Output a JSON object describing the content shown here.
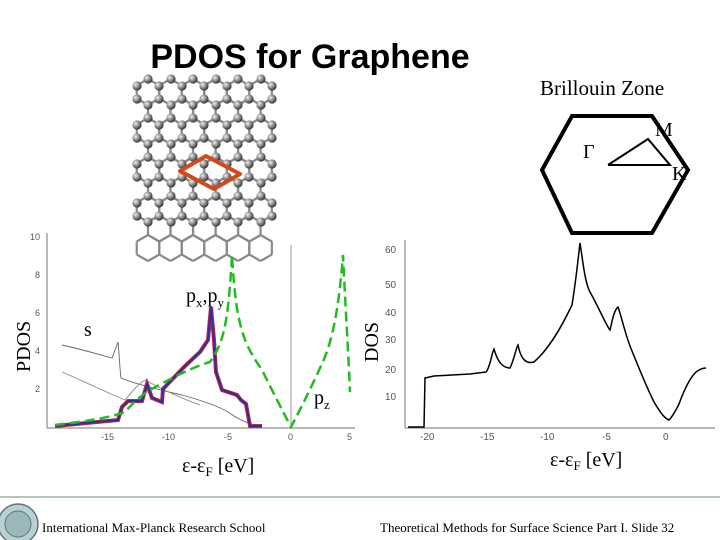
{
  "slide": {
    "title": "PDOS for Graphene",
    "bz_label": "Brillouin Zone",
    "footer_left": "International Max-Planck Research School",
    "footer_right": "Theoretical Methods for Surface Science Part I. Slide 32"
  },
  "bz_points": {
    "gamma": "Γ",
    "m": "M",
    "k": "K"
  },
  "pdos_panel": {
    "ylabel": "PDOS",
    "xlabel_main": "ε-ε",
    "xlabel_sub": "F",
    "xlabel_unit": " [eV]",
    "label_s": "s",
    "label_pxpy_a": "p",
    "label_pxpy_a_sub": "x",
    "label_pxpy_sep": ",p",
    "label_pxpy_b_sub": "y",
    "label_pz": "p",
    "label_pz_sub": "z",
    "yticks": [
      "2",
      "4",
      "6",
      "8",
      "10"
    ],
    "xticks": [
      "-15",
      "-10",
      "-5",
      "0",
      "5"
    ],
    "colors": {
      "s": "#606060",
      "pxpy": "#2233aa",
      "pxpy_outline": "#cc2233",
      "pz": "#22bb22"
    }
  },
  "dos_panel": {
    "ylabel": "DOS",
    "xlabel_main": "ε-ε",
    "xlabel_sub": "F",
    "xlabel_unit": " [eV]",
    "yticks": [
      "10",
      "20",
      "30",
      "40",
      "50",
      "60"
    ],
    "xticks": [
      "-20",
      "-15",
      "-10",
      "-5",
      "0"
    ]
  }
}
